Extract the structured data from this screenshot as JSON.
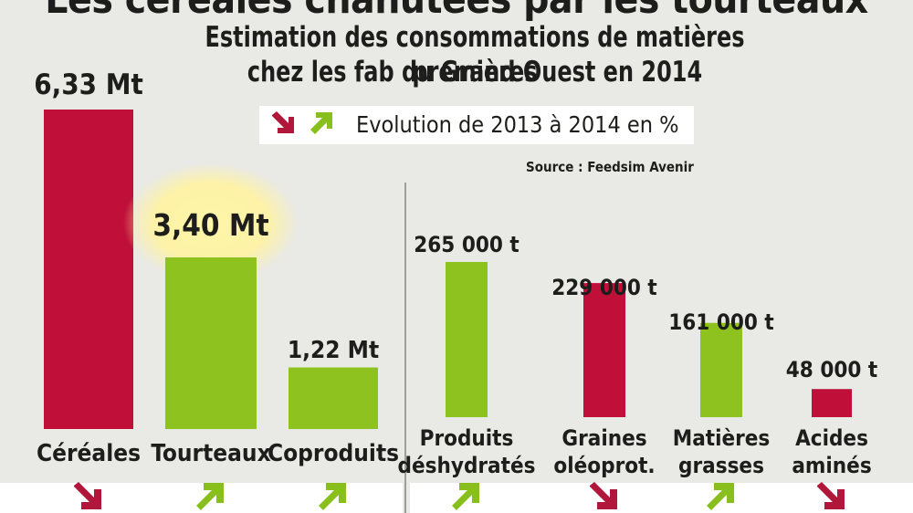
{
  "header": {
    "title_cut": "Les céréales chahutées par les tourteaux",
    "subtitle_line1": "Estimation des consommations de matières premières",
    "subtitle_line2": "chez les fab du Grand Ouest en 2014"
  },
  "legend": {
    "text": "Evolution de 2013 à 2014 en %",
    "down_color": "#b0173a",
    "up_color": "#89bf1d"
  },
  "source": "Source : Feedsim Avenir",
  "colors": {
    "red": "#c0103a",
    "green": "#8dc21f",
    "highlight": "#fff2a0"
  },
  "chart_data": [
    {
      "type": "bar",
      "unit": "Mt",
      "categories": [
        "Céréales",
        "Tourteaux",
        "Coproduits"
      ],
      "values": [
        6.33,
        3.4,
        1.22
      ],
      "value_labels": [
        "6,33 Mt",
        "3,40 Mt",
        "1,22 Mt"
      ],
      "bar_colors": [
        "red",
        "green",
        "green"
      ],
      "trend": [
        "down",
        "up",
        "up"
      ],
      "highlighted": [
        false,
        true,
        false
      ]
    },
    {
      "type": "bar",
      "unit": "t",
      "categories": [
        [
          "Produits",
          "déshydratés"
        ],
        [
          "Graines",
          "oléoprot."
        ],
        [
          "Matières",
          "grasses"
        ],
        [
          "Acides",
          "aminés"
        ]
      ],
      "values": [
        265000,
        229000,
        161000,
        48000
      ],
      "value_labels": [
        "265 000 t",
        "229 000 t",
        "161 000 t",
        "48 000 t"
      ],
      "bar_colors": [
        "green",
        "red",
        "green",
        "red"
      ],
      "trend": [
        "up",
        "down",
        "up",
        "down"
      ]
    }
  ]
}
